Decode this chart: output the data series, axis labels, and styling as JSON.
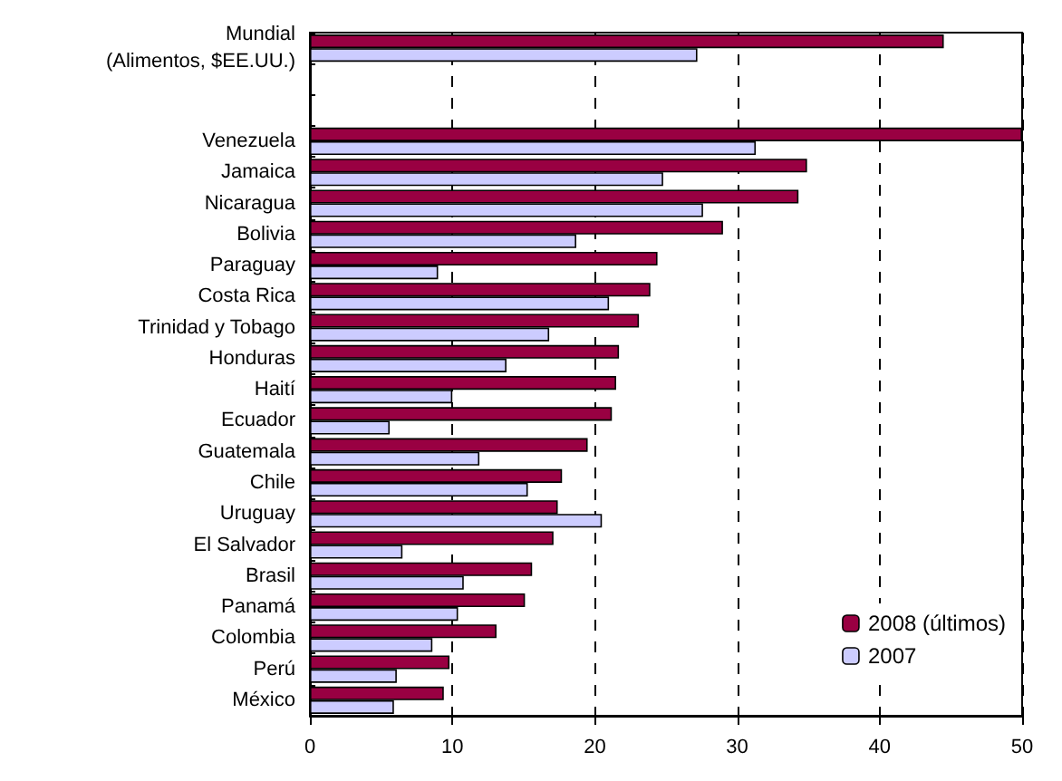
{
  "chart_data": {
    "type": "bar",
    "orientation": "horizontal",
    "categories": [
      "Mundial\n(Alimentos, $EE.UU.)",
      null,
      null,
      "Venezuela",
      "Jamaica",
      "Nicaragua",
      "Bolivia",
      "Paraguay",
      "Costa Rica",
      "Trinidad y Tobago",
      "Honduras",
      "Haití",
      "Ecuador",
      "Guatemala",
      "Chile",
      "Uruguay",
      "El Salvador",
      "Brasil",
      "Panamá",
      "Colombia",
      "Perú",
      "México"
    ],
    "series": [
      {
        "name": "2008 (últimos)",
        "color": "#990042",
        "values": [
          44.5,
          null,
          null,
          50.0,
          34.9,
          34.3,
          29.0,
          24.4,
          23.9,
          23.1,
          21.7,
          21.5,
          21.2,
          19.5,
          17.7,
          17.4,
          17.1,
          15.6,
          15.1,
          13.1,
          9.8,
          9.4
        ]
      },
      {
        "name": "2007",
        "color": "#ccccff",
        "values": [
          27.2,
          null,
          null,
          31.3,
          24.8,
          27.6,
          18.7,
          9.0,
          21.0,
          16.8,
          13.8,
          10.0,
          5.6,
          11.9,
          15.3,
          20.5,
          6.5,
          10.8,
          10.4,
          8.6,
          6.1,
          5.9
        ]
      }
    ],
    "xlim": [
      0,
      50
    ],
    "xticks": [
      0,
      10,
      20,
      30,
      40,
      50
    ],
    "grid": "x",
    "legend": "bottom right"
  }
}
